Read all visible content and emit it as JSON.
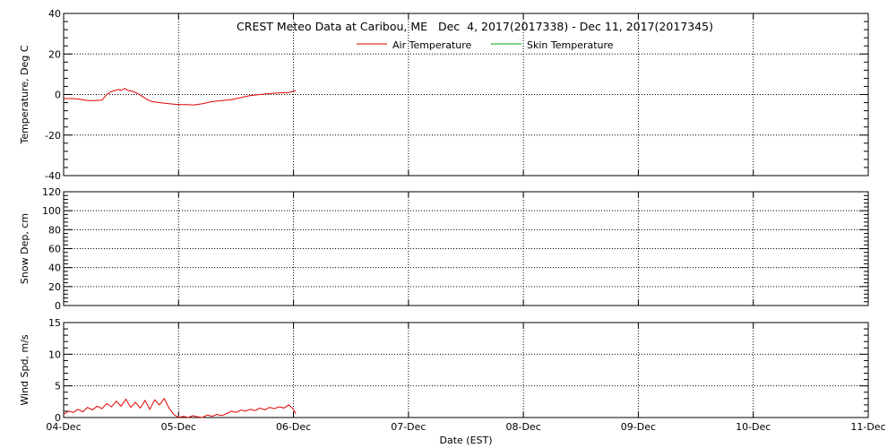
{
  "chart_data": {
    "type": "line",
    "title": "CREST Meteo Data at Caribou, ME   Dec  4, 2017(2017338) - Dec 11, 2017(2017345)",
    "xlabel": "Date (EST)",
    "x_ticks": [
      "04-Dec",
      "05-Dec",
      "06-Dec",
      "07-Dec",
      "08-Dec",
      "09-Dec",
      "10-Dec",
      "11-Dec"
    ],
    "xlim": [
      "2017-12-04",
      "2017-12-11"
    ],
    "grid": true,
    "legend_position": "top-center",
    "legend": [
      {
        "label": "Air Temperature",
        "color": "#e00000"
      },
      {
        "label": "Skin Temperature",
        "color": "#00a000"
      }
    ],
    "panels": [
      {
        "id": "temperature",
        "ylabel": "Temperature, Deg C",
        "ylim": [
          -40,
          40
        ],
        "y_ticks": [
          "-40",
          "-20",
          "0",
          "20",
          "40"
        ],
        "series": [
          {
            "name": "Air Temperature",
            "color": "#e00000",
            "x": [
              "2017-12-04T00:00",
              "2017-12-04T02:00",
              "2017-12-04T04:00",
              "2017-12-04T05:00",
              "2017-12-04T06:30",
              "2017-12-04T08:00",
              "2017-12-04T09:00",
              "2017-12-04T10:00",
              "2017-12-04T10:45",
              "2017-12-04T11:30",
              "2017-12-04T12:00",
              "2017-12-04T12:45",
              "2017-12-04T13:30",
              "2017-12-04T14:30",
              "2017-12-04T15:30",
              "2017-12-04T16:30",
              "2017-12-04T17:30",
              "2017-12-04T18:30",
              "2017-12-04T20:00",
              "2017-12-04T22:00",
              "2017-12-05T00:00",
              "2017-12-05T02:00",
              "2017-12-05T03:00",
              "2017-12-05T05:00",
              "2017-12-05T07:00",
              "2017-12-05T09:00",
              "2017-12-05T11:00",
              "2017-12-05T13:00",
              "2017-12-05T15:00",
              "2017-12-05T17:00",
              "2017-12-05T19:00",
              "2017-12-05T21:00",
              "2017-12-05T23:00",
              "2017-12-06T00:30"
            ],
            "y": [
              -2,
              -2,
              -2.5,
              -3,
              -3,
              -2.8,
              0,
              1.5,
              2,
              2.5,
              2,
              3,
              2,
              1.5,
              0.5,
              -1,
              -2.5,
              -3.5,
              -4,
              -4.5,
              -5,
              -5,
              -5.2,
              -4.5,
              -3.5,
              -3,
              -2.5,
              -1.5,
              -0.5,
              0,
              0.5,
              0.8,
              1,
              2
            ]
          },
          {
            "name": "Skin Temperature",
            "color": "#00a000",
            "x": [],
            "y": []
          }
        ]
      },
      {
        "id": "snow_depth",
        "ylabel": "Snow Dep, cm",
        "ylim": [
          0,
          120
        ],
        "y_ticks": [
          "0",
          "20",
          "40",
          "60",
          "80",
          "100",
          "120"
        ],
        "series": []
      },
      {
        "id": "wind_speed",
        "ylabel": "Wind Spd, m/s",
        "ylim": [
          0,
          15
        ],
        "y_ticks": [
          "0",
          "5",
          "10",
          "15"
        ],
        "series": [
          {
            "name": "Wind Speed",
            "color": "#e00000",
            "x": [
              "2017-12-04T00:00",
              "2017-12-04T01:00",
              "2017-12-04T02:00",
              "2017-12-04T03:00",
              "2017-12-04T04:00",
              "2017-12-04T05:00",
              "2017-12-04T06:00",
              "2017-12-04T07:00",
              "2017-12-04T08:00",
              "2017-12-04T09:00",
              "2017-12-04T10:00",
              "2017-12-04T11:00",
              "2017-12-04T12:00",
              "2017-12-04T13:00",
              "2017-12-04T14:00",
              "2017-12-04T15:00",
              "2017-12-04T16:00",
              "2017-12-04T17:00",
              "2017-12-04T18:00",
              "2017-12-04T19:00",
              "2017-12-04T20:00",
              "2017-12-04T21:00",
              "2017-12-04T22:00",
              "2017-12-04T23:00",
              "2017-12-05T00:00",
              "2017-12-05T01:00",
              "2017-12-05T02:00",
              "2017-12-05T03:00",
              "2017-12-05T04:00",
              "2017-12-05T05:00",
              "2017-12-05T06:00",
              "2017-12-05T07:00",
              "2017-12-05T08:00",
              "2017-12-05T09:00",
              "2017-12-05T10:00",
              "2017-12-05T11:00",
              "2017-12-05T12:00",
              "2017-12-05T13:00",
              "2017-12-05T14:00",
              "2017-12-05T15:00",
              "2017-12-05T16:00",
              "2017-12-05T17:00",
              "2017-12-05T18:00",
              "2017-12-05T19:00",
              "2017-12-05T20:00",
              "2017-12-05T21:00",
              "2017-12-05T22:00",
              "2017-12-05T23:00",
              "2017-12-06T00:00",
              "2017-12-06T00:30"
            ],
            "y": [
              0.5,
              1.0,
              0.8,
              1.3,
              0.9,
              1.6,
              1.2,
              1.8,
              1.4,
              2.2,
              1.7,
              2.6,
              1.8,
              2.9,
              1.6,
              2.4,
              1.5,
              2.7,
              1.3,
              2.8,
              2.0,
              3.0,
              1.5,
              0.5,
              0.0,
              0.2,
              0.0,
              0.3,
              0.1,
              0.0,
              0.4,
              0.2,
              0.5,
              0.3,
              0.6,
              1.0,
              0.8,
              1.2,
              1.0,
              1.3,
              1.1,
              1.5,
              1.2,
              1.6,
              1.4,
              1.7,
              1.5,
              2.0,
              1.3,
              0.6
            ]
          }
        ]
      }
    ]
  }
}
